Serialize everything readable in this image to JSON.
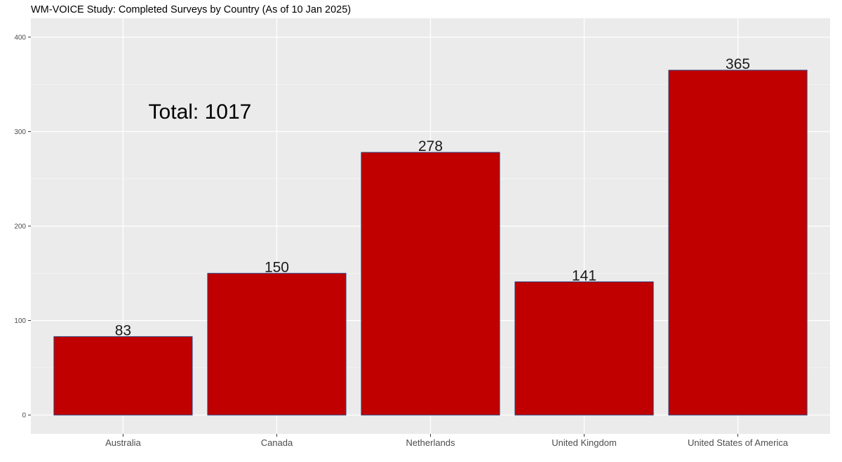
{
  "chart_data": {
    "type": "bar",
    "title": "WM-VOICE Study: Completed Surveys by Country (As of 10 Jan 2025)",
    "xlabel": "",
    "ylabel": "",
    "categories": [
      "Australia",
      "Canada",
      "Netherlands",
      "United Kingdom",
      "United States of America"
    ],
    "values": [
      83,
      150,
      278,
      141,
      365
    ],
    "data_labels": [
      "83",
      "150",
      "278",
      "141",
      "365"
    ],
    "ylim": [
      -20,
      420
    ],
    "yticks": [
      0,
      100,
      200,
      300,
      400
    ],
    "ytick_labels": [
      "0",
      "100",
      "200",
      "300",
      "400"
    ],
    "grid": true,
    "legend": "none",
    "annotation": {
      "text": "Total: 1017",
      "x_category": "Australia to Canada",
      "y": 322
    },
    "colors": {
      "bar_fill": "#c00000",
      "bar_outline": "#2f3e7a",
      "panel_background": "#ebebeb",
      "grid_major": "#ffffff",
      "grid_minor": "#f5f5f5",
      "tick_text": "#4d4d4d"
    }
  }
}
